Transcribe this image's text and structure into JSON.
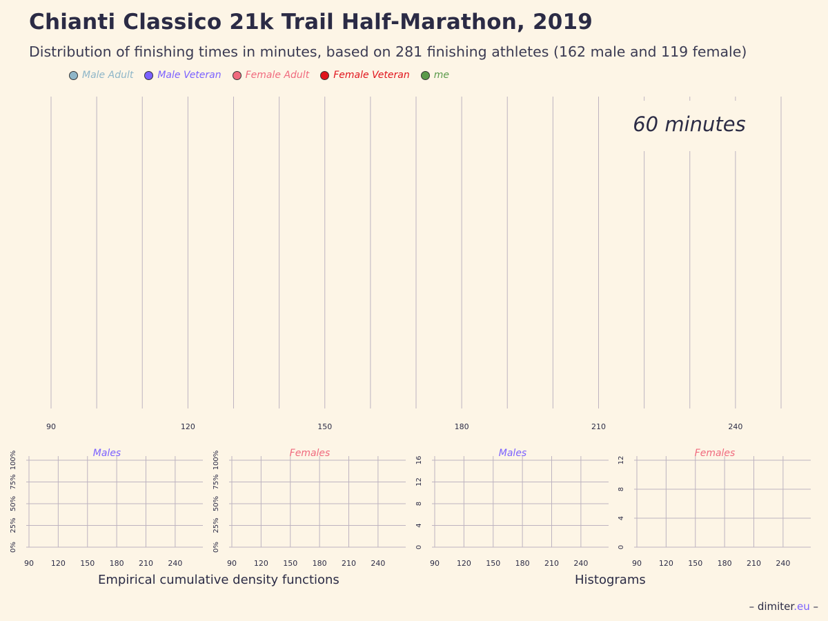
{
  "title": "Chianti Classico 21k Trail Half-Marathon, 2019",
  "subtitle": "Distribution of finishing times in minutes, based on 281 finishing athletes (162 male and 119 female)",
  "legend": [
    {
      "label": "Male Adult",
      "color": "#8fb6c8"
    },
    {
      "label": "Male Veteran",
      "color": "#7b61ff"
    },
    {
      "label": "Female Adult",
      "color": "#f06a7e"
    },
    {
      "label": "Female Veteran",
      "color": "#e0141c"
    },
    {
      "label": "me",
      "color": "#5a9a4a"
    }
  ],
  "chart_data": [
    {
      "type": "scatter",
      "title": "",
      "annotation": "60 minutes",
      "xlabel": "",
      "ylabel": "",
      "xlim": [
        90,
        250
      ],
      "x_ticks": [
        90,
        120,
        150,
        180,
        210,
        240
      ],
      "gridlines_x": [
        90,
        100,
        110,
        120,
        130,
        140,
        150,
        160,
        170,
        180,
        190,
        200,
        210,
        220,
        230,
        240,
        250
      ],
      "grid": true,
      "series": []
    },
    {
      "type": "line",
      "title": "Males",
      "title_color": "#7b61ff",
      "xlim": [
        90,
        250
      ],
      "x_ticks": [
        90,
        120,
        150,
        180,
        210,
        240
      ],
      "ylim": [
        0,
        1
      ],
      "y_ticks": [
        "0%",
        "25%",
        "50%",
        "75%",
        "100%"
      ],
      "y_tick_values": [
        0,
        0.25,
        0.5,
        0.75,
        1
      ],
      "grid": true,
      "series": []
    },
    {
      "type": "line",
      "title": "Females",
      "title_color": "#f06a7e",
      "xlim": [
        90,
        250
      ],
      "x_ticks": [
        90,
        120,
        150,
        180,
        210,
        240
      ],
      "ylim": [
        0,
        1
      ],
      "y_ticks": [
        "0%",
        "25%",
        "50%",
        "75%",
        "100%"
      ],
      "y_tick_values": [
        0,
        0.25,
        0.5,
        0.75,
        1
      ],
      "grid": true,
      "series": []
    },
    {
      "type": "bar",
      "title": "Males",
      "title_color": "#7b61ff",
      "xlim": [
        90,
        250
      ],
      "x_ticks": [
        90,
        120,
        150,
        180,
        210,
        240
      ],
      "ylim": [
        0,
        16
      ],
      "y_ticks": [
        "0",
        "4",
        "8",
        "12",
        "16"
      ],
      "y_tick_values": [
        0,
        4,
        8,
        12,
        16
      ],
      "grid": true,
      "series": []
    },
    {
      "type": "bar",
      "title": "Females",
      "title_color": "#f06a7e",
      "xlim": [
        90,
        250
      ],
      "x_ticks": [
        90,
        120,
        150,
        180,
        210,
        240
      ],
      "ylim": [
        0,
        12
      ],
      "y_ticks": [
        "0",
        "4",
        "8",
        "12"
      ],
      "y_tick_values": [
        0,
        4,
        8,
        12
      ],
      "grid": true,
      "series": []
    }
  ],
  "captions": {
    "ecdf": "Empirical cumulative density functions",
    "hist": "Histograms"
  },
  "credit": {
    "prefix": "– dimiter",
    "tld": ".eu",
    "suffix": " –"
  },
  "colors": {
    "background": "#fdf5e6",
    "grid": "#bdb3c0",
    "text": "#2b2b45"
  }
}
